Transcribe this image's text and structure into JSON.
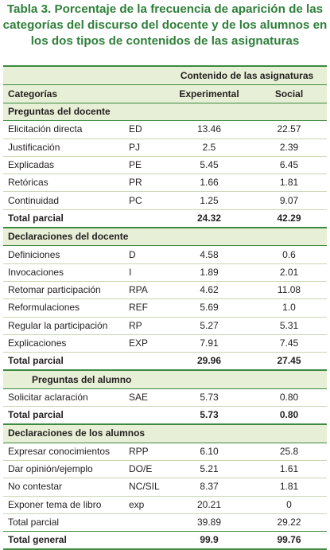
{
  "title": {
    "line1": "Tabla 3. Porcentaje de la frecuencia de aparición de las",
    "line2": "categorías del discurso del docente y de los alumnos en",
    "line3": "los dos tipos de contenidos de las asignaturas"
  },
  "header": {
    "group": "Contenido de las asignaturas",
    "categorias": "Categorías",
    "experimental": "Experimental",
    "social": "Social"
  },
  "sections": {
    "s1": {
      "title": "Preguntas del docente",
      "rows": [
        {
          "label": "Elicitación directa",
          "code": "ED",
          "exp": "13.46",
          "soc": "22.57"
        },
        {
          "label": "Justificación",
          "code": "PJ",
          "exp": "2.5",
          "soc": "2.39"
        },
        {
          "label": "Explicadas",
          "code": "PE",
          "exp": "5.45",
          "soc": "6.45"
        },
        {
          "label": "Retóricas",
          "code": "PR",
          "exp": "1.66",
          "soc": "1.81"
        },
        {
          "label": "Continuidad",
          "code": "PC",
          "exp": "1.25",
          "soc": "9.07"
        }
      ],
      "total": {
        "label": "Total parcial",
        "exp": "24.32",
        "soc": "42.29"
      }
    },
    "s2": {
      "title": "Declaraciones del docente",
      "rows": [
        {
          "label": "Definiciones",
          "code": "D",
          "exp": "4.58",
          "soc": "0.6"
        },
        {
          "label": "Invocaciones",
          "code": "I",
          "exp": "1.89",
          "soc": "2.01"
        },
        {
          "label": "Retomar participación",
          "code": "RPA",
          "exp": "4.62",
          "soc": "11.08"
        },
        {
          "label": "Reformulaciones",
          "code": "REF",
          "exp": "5.69",
          "soc": "1.0"
        },
        {
          "label": "Regular la participación",
          "code": "RP",
          "exp": "5.27",
          "soc": "5.31"
        },
        {
          "label": "Explicaciones",
          "code": "EXP",
          "exp": "7.91",
          "soc": "7.45"
        }
      ],
      "total": {
        "label": "Total parcial",
        "exp": "29.96",
        "soc": "27.45"
      }
    },
    "s3": {
      "title": "Preguntas del alumno",
      "rows": [
        {
          "label": "Solicitar aclaración",
          "code": "SAE",
          "exp": "5.73",
          "soc": "0.80"
        }
      ],
      "total": {
        "label": "Total parcial",
        "exp": "5.73",
        "soc": "0.80"
      }
    },
    "s4": {
      "title": "Declaraciones de los alumnos",
      "rows": [
        {
          "label": "Expresar conocimientos",
          "code": "RPP",
          "exp": "6.10",
          "soc": "25.8"
        },
        {
          "label": "Dar opinión/ejemplo",
          "code": "DO/E",
          "exp": "5.21",
          "soc": "1.61"
        },
        {
          "label": "No contestar",
          "code": "NC/SIL",
          "exp": "8.37",
          "soc": "1.81"
        },
        {
          "label": "Exponer tema de libro",
          "code": "exp",
          "exp": "20.21",
          "soc": "0"
        }
      ],
      "total": {
        "label": "Total parcial",
        "exp": "39.89",
        "soc": "29.22"
      }
    }
  },
  "grand_total": {
    "label": "Total general",
    "exp": "99.9",
    "soc": "99.76"
  }
}
